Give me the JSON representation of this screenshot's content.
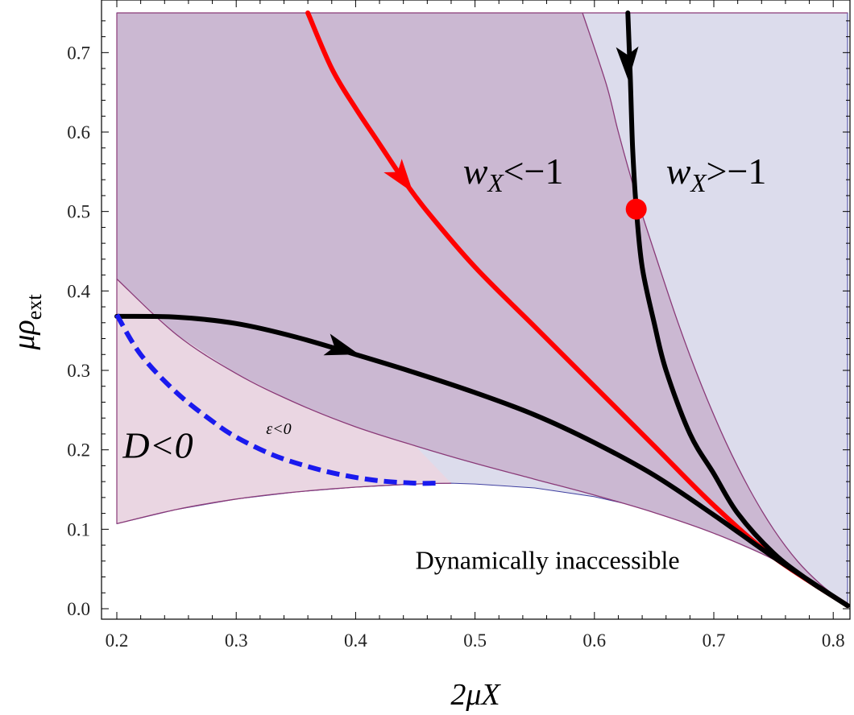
{
  "chart_data": {
    "type": "line",
    "xlabel": "2μX",
    "ylabel": "μρ_ext",
    "xlim": [
      0.2,
      0.812
    ],
    "ylim": [
      0.0,
      0.75
    ],
    "x_ticks": [
      {
        "value": 0.2,
        "label": "0.2"
      },
      {
        "value": 0.3,
        "label": "0.3"
      },
      {
        "value": 0.4,
        "label": "0.4"
      },
      {
        "value": 0.5,
        "label": "0.5"
      },
      {
        "value": 0.6,
        "label": "0.6"
      },
      {
        "value": 0.7,
        "label": "0.7"
      },
      {
        "value": 0.8,
        "label": "0.8"
      }
    ],
    "y_ticks": [
      {
        "value": 0.0,
        "label": "0.0"
      },
      {
        "value": 0.1,
        "label": "0.1"
      },
      {
        "value": 0.2,
        "label": "0.2"
      },
      {
        "value": 0.3,
        "label": "0.3"
      },
      {
        "value": 0.4,
        "label": "0.4"
      },
      {
        "value": 0.5,
        "label": "0.5"
      },
      {
        "value": 0.6,
        "label": "0.6"
      },
      {
        "value": 0.7,
        "label": "0.7"
      }
    ],
    "grid": false,
    "colors": {
      "background_region": "#dcdcec",
      "phantom_region": "#cbb8d2",
      "d_negative_region": "#ead6e2",
      "boundary": "#8a3a78",
      "red_trajectory": "#ff0000",
      "black_trajectory": "#000000",
      "dashed_curve": "#1a1aee"
    },
    "regions": {
      "phantom_lower_boundary": {
        "x": [
          0.2,
          0.25,
          0.3,
          0.35,
          0.4,
          0.45,
          0.5,
          0.55,
          0.6,
          0.65,
          0.7,
          0.75,
          0.8,
          0.812
        ],
        "y": [
          0.415,
          0.345,
          0.296,
          0.259,
          0.229,
          0.205,
          0.183,
          0.163,
          0.143,
          0.121,
          0.095,
          0.062,
          0.018,
          0.004
        ]
      },
      "phantom_right_boundary": {
        "x": [
          0.812,
          0.79,
          0.77,
          0.75,
          0.73,
          0.71,
          0.69,
          0.67,
          0.65,
          0.635,
          0.62,
          0.61,
          0.59
        ],
        "y": [
          0.004,
          0.03,
          0.06,
          0.1,
          0.15,
          0.21,
          0.28,
          0.36,
          0.45,
          0.52,
          0.6,
          0.66,
          0.75
        ]
      },
      "d_negative_boundary": {
        "x": [
          0.2,
          0.25,
          0.3,
          0.35,
          0.4,
          0.45,
          0.48
        ],
        "y": [
          0.107,
          0.125,
          0.138,
          0.147,
          0.153,
          0.157,
          0.158
        ]
      },
      "accessible_lower_boundary": {
        "x": [
          0.48,
          0.5,
          0.55,
          0.6,
          0.65,
          0.7,
          0.75,
          0.8,
          0.812
        ],
        "y": [
          0.158,
          0.157,
          0.152,
          0.141,
          0.124,
          0.098,
          0.063,
          0.018,
          0.004
        ]
      }
    },
    "series": [
      {
        "color": "#ff0000",
        "style": "solid",
        "x": [
          0.36,
          0.38,
          0.4,
          0.42,
          0.44,
          0.46,
          0.5,
          0.55,
          0.6,
          0.65,
          0.7,
          0.75,
          0.812
        ],
        "y": [
          0.75,
          0.68,
          0.63,
          0.585,
          0.54,
          0.5,
          0.43,
          0.355,
          0.28,
          0.205,
          0.13,
          0.065,
          0.004
        ],
        "arrows": [
          {
            "x": 0.44,
            "y": 0.54
          }
        ]
      },
      {
        "color": "#000000",
        "style": "solid",
        "x": [
          0.2,
          0.25,
          0.3,
          0.35,
          0.4,
          0.45,
          0.5,
          0.55,
          0.6,
          0.65,
          0.7,
          0.75,
          0.812
        ],
        "y": [
          0.368,
          0.367,
          0.359,
          0.342,
          0.32,
          0.297,
          0.272,
          0.244,
          0.209,
          0.168,
          0.118,
          0.065,
          0.004
        ],
        "arrows": [
          {
            "x": 0.39,
            "y": 0.326
          }
        ]
      },
      {
        "color": "#000000",
        "style": "solid",
        "x": [
          0.628,
          0.63,
          0.632,
          0.635,
          0.64,
          0.65,
          0.66,
          0.68,
          0.7,
          0.72,
          0.75,
          0.78,
          0.812
        ],
        "y": [
          0.75,
          0.67,
          0.58,
          0.505,
          0.43,
          0.36,
          0.3,
          0.22,
          0.17,
          0.12,
          0.07,
          0.035,
          0.004
        ],
        "arrows": [
          {
            "x": 0.628,
            "y": 0.685
          }
        ]
      },
      {
        "color": "#1a1aee",
        "style": "dashed",
        "x": [
          0.2,
          0.22,
          0.25,
          0.28,
          0.3,
          0.33,
          0.36,
          0.39,
          0.42,
          0.45,
          0.467
        ],
        "y": [
          0.37,
          0.32,
          0.272,
          0.236,
          0.216,
          0.194,
          0.179,
          0.168,
          0.161,
          0.158,
          0.158
        ],
        "arrows": []
      }
    ],
    "point": {
      "x": 0.635,
      "y": 0.503,
      "color": "#ff0000"
    },
    "annotations": [
      {
        "key": "wx_lt",
        "text": "w_X<−1",
        "x": 0.49,
        "y": 0.535
      },
      {
        "key": "wx_gt",
        "text": "w_X>−1",
        "x": 0.66,
        "y": 0.535
      },
      {
        "key": "d_neg",
        "text": "D<0",
        "x": 0.205,
        "y": 0.19
      },
      {
        "key": "eps_neg",
        "text": "ε<0",
        "x": 0.325,
        "y": 0.22
      },
      {
        "key": "inaccessible",
        "text": "Dynamically inaccessible",
        "x": 0.5,
        "y": 0.05
      }
    ]
  }
}
